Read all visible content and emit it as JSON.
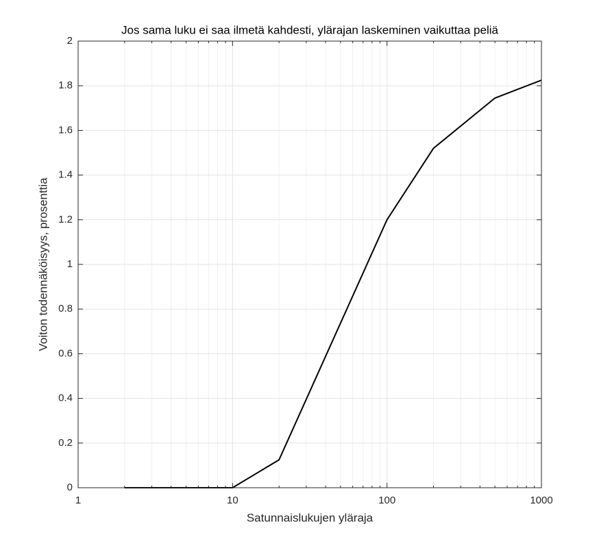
{
  "chart_data": {
    "type": "line",
    "title": "Jos sama luku ei saa ilmetä kahdesti, ylärajan laskeminen vaikuttaa peliä",
    "xlabel": "Satunnaislukujen yläraja",
    "ylabel": "Voiton todennäköisyys, prosenttia",
    "x": [
      2,
      10,
      20,
      100,
      200,
      500,
      1000
    ],
    "series": [
      {
        "name": "Voiton todennäköisyys",
        "color": "#000000",
        "values": [
          0,
          0,
          0.125,
          1.2,
          1.52,
          1.745,
          1.825
        ]
      }
    ],
    "xscale": "log",
    "xlim": [
      1,
      1000
    ],
    "xticks": [
      1,
      10,
      100,
      1000
    ],
    "xminorticks": [
      2,
      3,
      4,
      5,
      6,
      7,
      8,
      9,
      20,
      30,
      40,
      50,
      60,
      70,
      80,
      90,
      200,
      300,
      400,
      500,
      600,
      700,
      800,
      900
    ],
    "ylim": [
      0,
      2
    ],
    "yticks": [
      0,
      0.2,
      0.4,
      0.6,
      0.8,
      1,
      1.2,
      1.4,
      1.6,
      1.8,
      2
    ],
    "grid": true
  }
}
